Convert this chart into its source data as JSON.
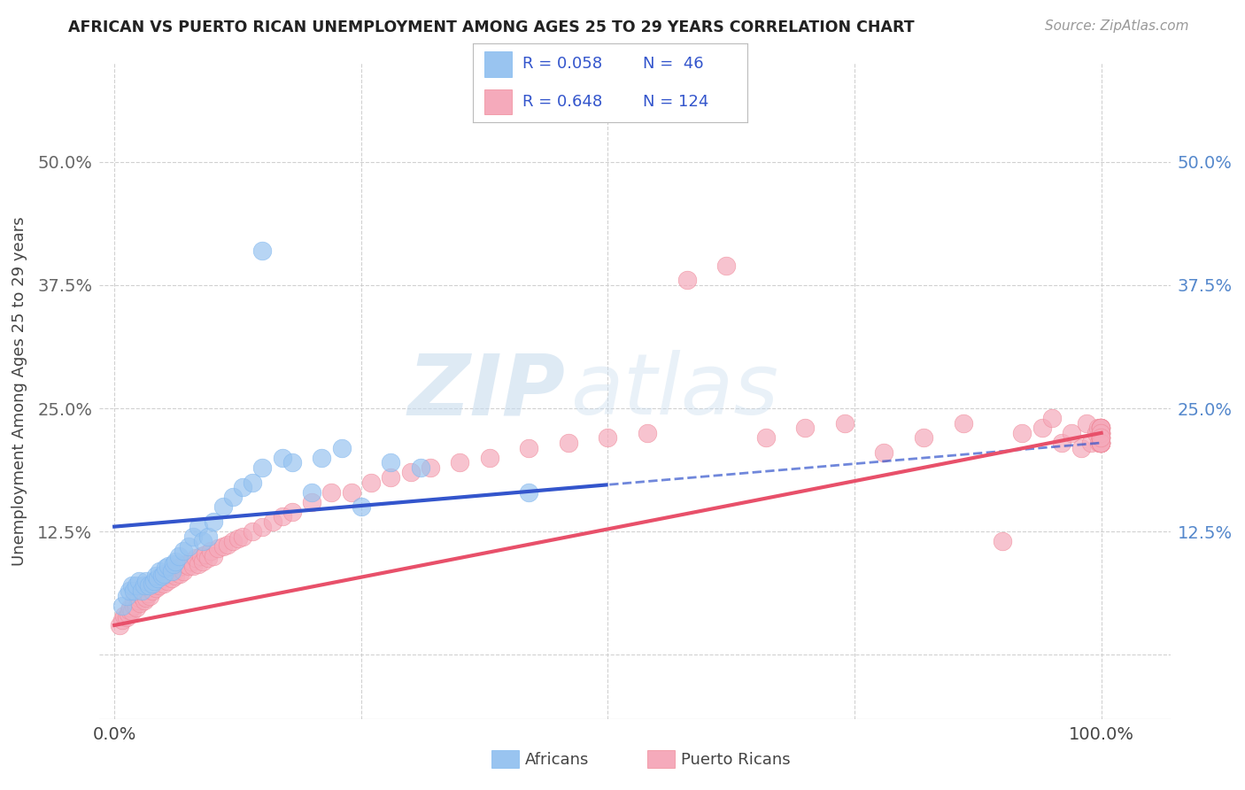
{
  "title": "AFRICAN VS PUERTO RICAN UNEMPLOYMENT AMONG AGES 25 TO 29 YEARS CORRELATION CHART",
  "source": "Source: ZipAtlas.com",
  "ylabel": "Unemployment Among Ages 25 to 29 years",
  "african_color": "#99C4F0",
  "african_color_edge": "#7EB6EF",
  "pr_color": "#F5AABB",
  "pr_color_edge": "#F08898",
  "african_line_color": "#3355CC",
  "pr_line_color": "#E8506A",
  "legend_text_color": "#3355CC",
  "right_tick_color": "#5588CC",
  "background_color": "#FFFFFF",
  "grid_color": "#CCCCCC",
  "watermark": "ZIPatlas",
  "african_x": [
    0.008,
    0.012,
    0.015,
    0.018,
    0.02,
    0.022,
    0.025,
    0.028,
    0.03,
    0.032,
    0.035,
    0.038,
    0.04,
    0.042,
    0.044,
    0.046,
    0.048,
    0.05,
    0.052,
    0.055,
    0.058,
    0.06,
    0.062,
    0.065,
    0.07,
    0.075,
    0.08,
    0.085,
    0.09,
    0.095,
    0.1,
    0.11,
    0.12,
    0.13,
    0.14,
    0.15,
    0.17,
    0.18,
    0.2,
    0.21,
    0.23,
    0.25,
    0.28,
    0.31,
    0.42,
    0.15
  ],
  "african_y": [
    0.05,
    0.06,
    0.065,
    0.07,
    0.065,
    0.07,
    0.075,
    0.065,
    0.07,
    0.075,
    0.07,
    0.072,
    0.075,
    0.08,
    0.078,
    0.085,
    0.08,
    0.082,
    0.088,
    0.09,
    0.085,
    0.092,
    0.095,
    0.1,
    0.105,
    0.11,
    0.12,
    0.13,
    0.115,
    0.12,
    0.135,
    0.15,
    0.16,
    0.17,
    0.175,
    0.19,
    0.2,
    0.195,
    0.165,
    0.2,
    0.21,
    0.15,
    0.195,
    0.19,
    0.165,
    0.41
  ],
  "pr_x": [
    0.005,
    0.008,
    0.01,
    0.012,
    0.014,
    0.015,
    0.016,
    0.018,
    0.02,
    0.02,
    0.022,
    0.024,
    0.025,
    0.026,
    0.028,
    0.03,
    0.03,
    0.032,
    0.034,
    0.035,
    0.036,
    0.038,
    0.04,
    0.042,
    0.044,
    0.045,
    0.046,
    0.048,
    0.05,
    0.052,
    0.054,
    0.056,
    0.058,
    0.06,
    0.062,
    0.064,
    0.066,
    0.068,
    0.07,
    0.072,
    0.075,
    0.078,
    0.08,
    0.082,
    0.085,
    0.088,
    0.09,
    0.092,
    0.095,
    0.098,
    0.1,
    0.105,
    0.11,
    0.115,
    0.12,
    0.125,
    0.13,
    0.14,
    0.15,
    0.16,
    0.17,
    0.18,
    0.2,
    0.22,
    0.24,
    0.26,
    0.28,
    0.3,
    0.32,
    0.35,
    0.38,
    0.42,
    0.46,
    0.5,
    0.54,
    0.58,
    0.62,
    0.66,
    0.7,
    0.74,
    0.78,
    0.82,
    0.86,
    0.9,
    0.92,
    0.94,
    0.95,
    0.96,
    0.97,
    0.98,
    0.985,
    0.99,
    0.995,
    0.997,
    0.998,
    0.999,
    0.999,
    0.999,
    0.999,
    0.999,
    0.999,
    0.999,
    0.999,
    0.999,
    0.999,
    0.999,
    0.999,
    0.999,
    0.999,
    0.999,
    0.999,
    0.999,
    0.999,
    0.999,
    0.999,
    0.999,
    0.999,
    0.999,
    0.999,
    0.999,
    0.999,
    0.999,
    0.999,
    0.999
  ],
  "pr_y": [
    0.03,
    0.035,
    0.04,
    0.038,
    0.042,
    0.045,
    0.048,
    0.044,
    0.05,
    0.055,
    0.048,
    0.055,
    0.058,
    0.052,
    0.06,
    0.055,
    0.065,
    0.058,
    0.062,
    0.068,
    0.06,
    0.065,
    0.07,
    0.068,
    0.072,
    0.075,
    0.07,
    0.078,
    0.072,
    0.08,
    0.075,
    0.082,
    0.078,
    0.085,
    0.08,
    0.088,
    0.082,
    0.09,
    0.085,
    0.092,
    0.09,
    0.095,
    0.09,
    0.098,
    0.092,
    0.1,
    0.095,
    0.102,
    0.098,
    0.105,
    0.1,
    0.108,
    0.11,
    0.112,
    0.115,
    0.118,
    0.12,
    0.125,
    0.13,
    0.135,
    0.14,
    0.145,
    0.155,
    0.165,
    0.165,
    0.175,
    0.18,
    0.185,
    0.19,
    0.195,
    0.2,
    0.21,
    0.215,
    0.22,
    0.225,
    0.38,
    0.395,
    0.22,
    0.23,
    0.235,
    0.205,
    0.22,
    0.235,
    0.115,
    0.225,
    0.23,
    0.24,
    0.215,
    0.225,
    0.21,
    0.235,
    0.215,
    0.225,
    0.23,
    0.215,
    0.22,
    0.225,
    0.23,
    0.215,
    0.225,
    0.23,
    0.215,
    0.22,
    0.225,
    0.23,
    0.215,
    0.22,
    0.225,
    0.215,
    0.23,
    0.22,
    0.215,
    0.225,
    0.22,
    0.215,
    0.23,
    0.225,
    0.215,
    0.22,
    0.215,
    0.23,
    0.225,
    0.215,
    0.22
  ],
  "xlim": [
    -0.015,
    1.07
  ],
  "ylim": [
    -0.065,
    0.6
  ],
  "xticks": [
    0.0,
    0.25,
    0.5,
    0.75,
    1.0
  ],
  "xtick_labels": [
    "0.0%",
    "",
    "",
    "",
    "100.0%"
  ],
  "yticks": [
    0.0,
    0.125,
    0.25,
    0.375,
    0.5
  ],
  "ytick_labels": [
    "",
    "12.5%",
    "25.0%",
    "37.5%",
    "50.0%"
  ]
}
